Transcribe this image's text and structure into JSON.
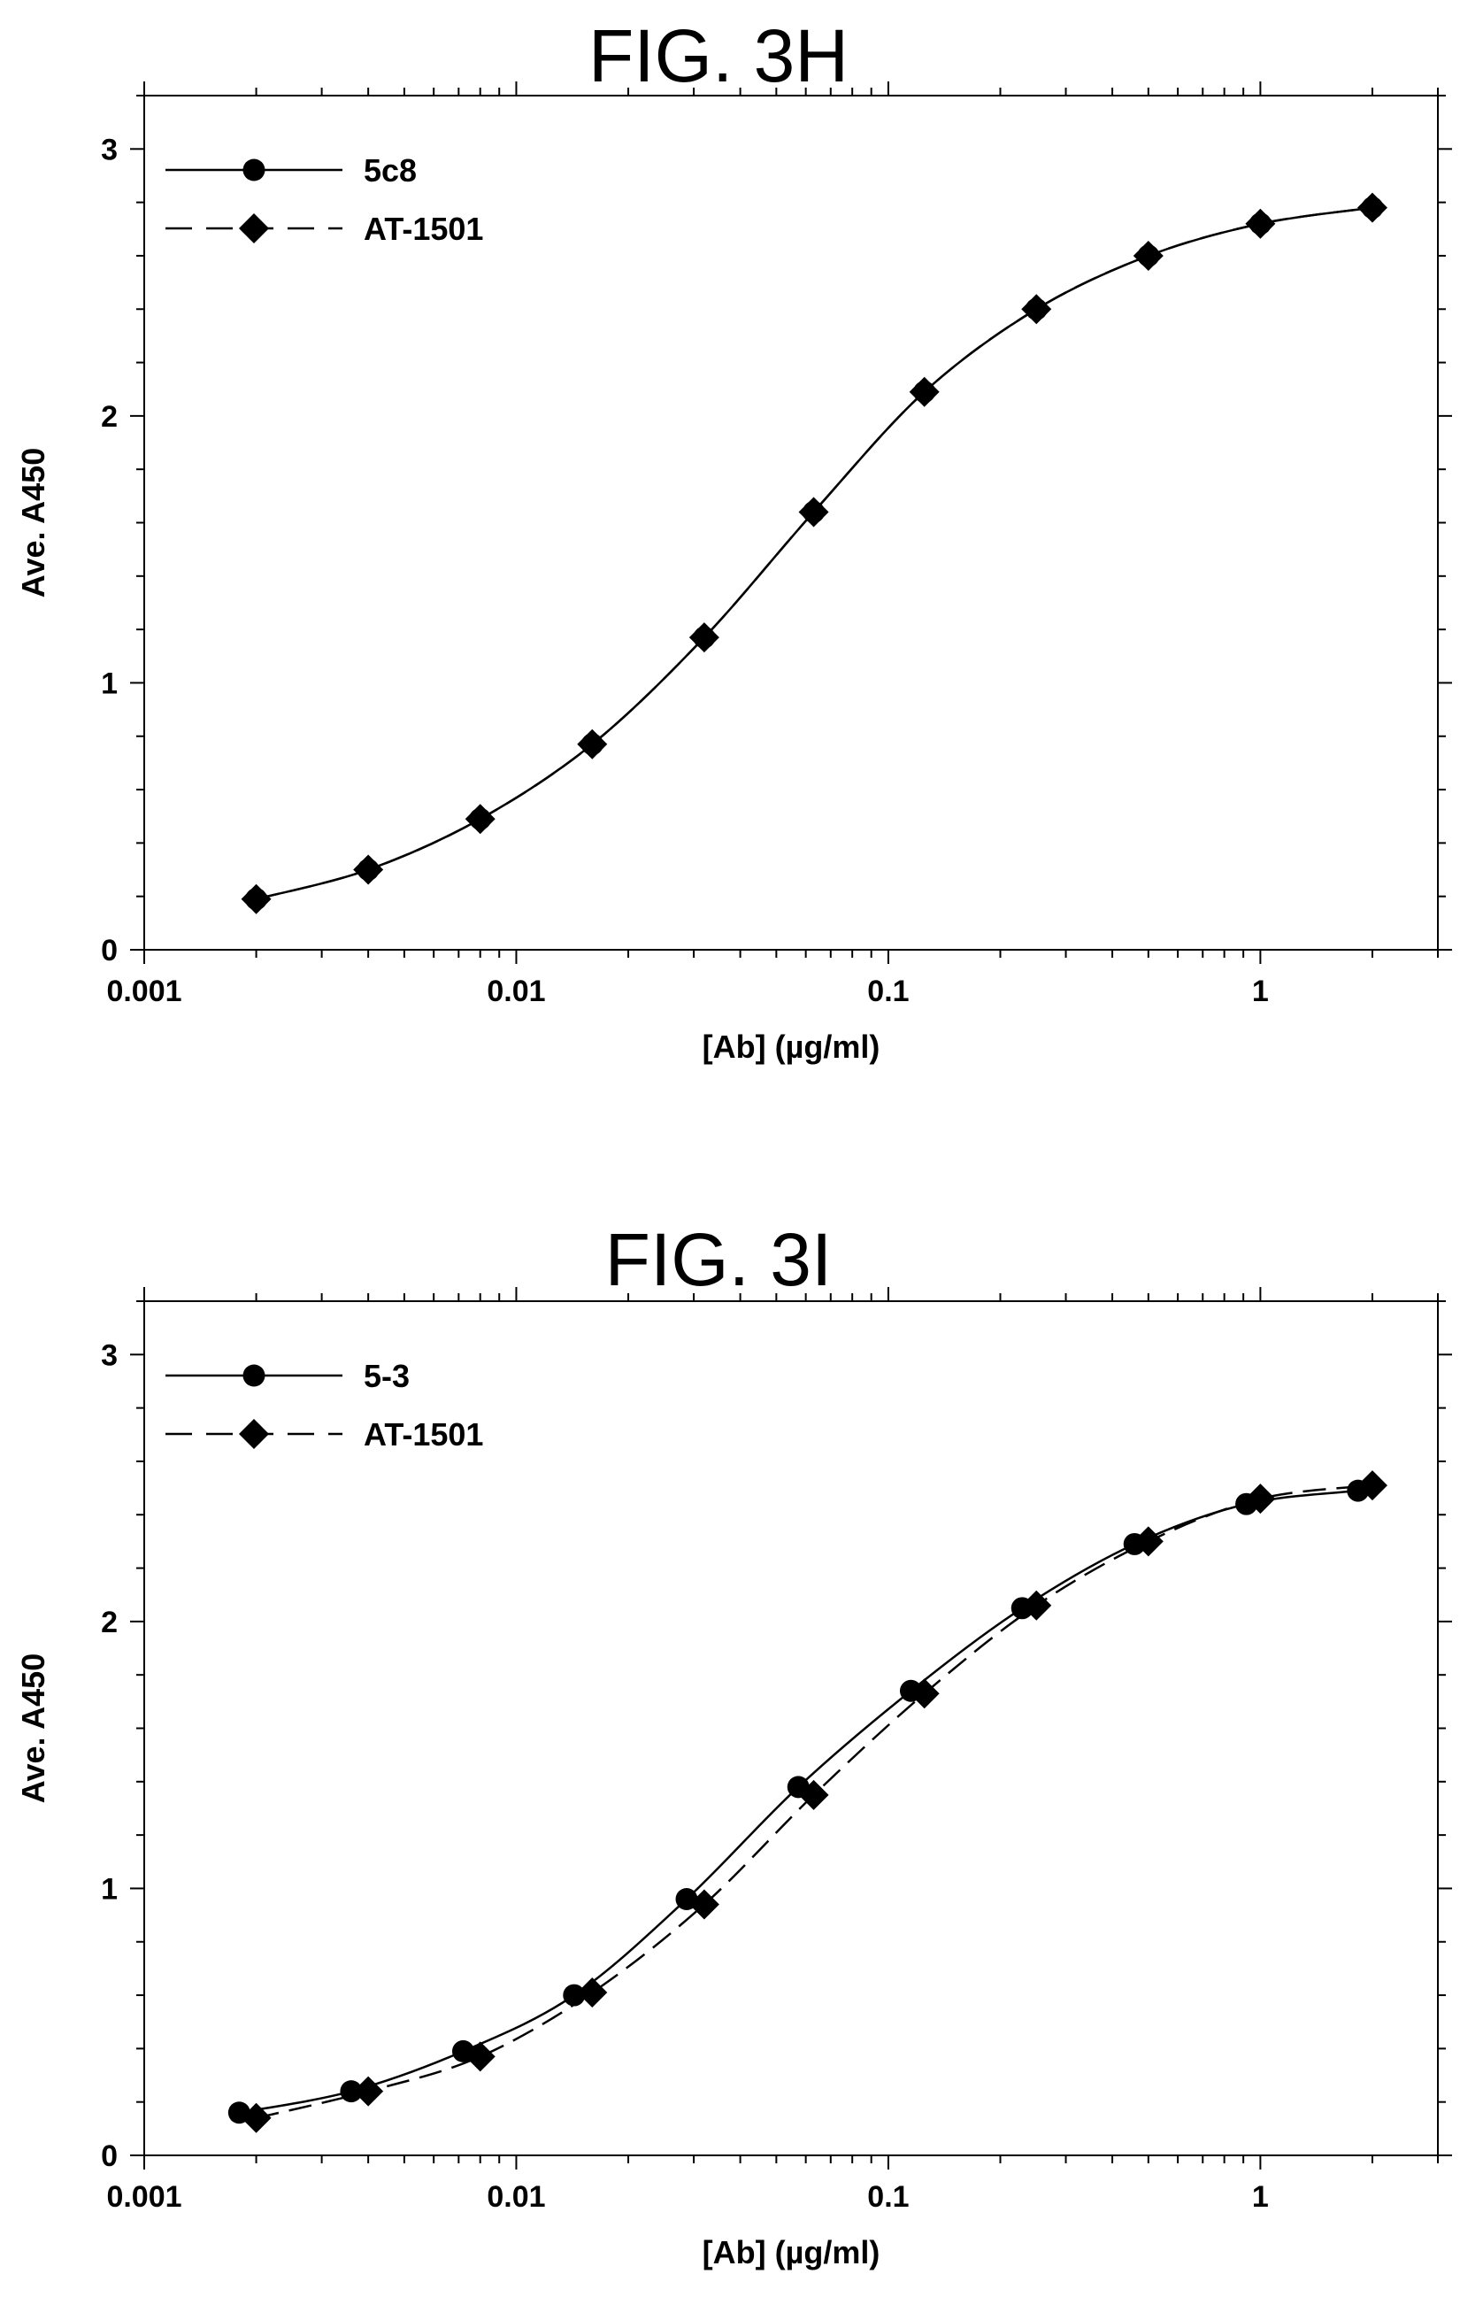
{
  "chart_data": [
    {
      "type": "line",
      "title": "FIG. 3H",
      "xlabel": "[Ab]  (µg/ml)",
      "ylabel": "Ave. A450",
      "xscale": "log",
      "xlim": [
        0.001,
        3
      ],
      "ylim": [
        0,
        3.2
      ],
      "x_ticks": [
        "0.001",
        "0.01",
        "0.1",
        "1"
      ],
      "y_ticks": [
        "0",
        "1",
        "2",
        "3"
      ],
      "legend_position": "top-left",
      "grid": false,
      "series": [
        {
          "name": "5c8",
          "marker": "circle",
          "line_style": "solid",
          "x": [
            0.002,
            0.004,
            0.008,
            0.016,
            0.032,
            0.063,
            0.125,
            0.25,
            0.5,
            1.0,
            2.0
          ],
          "y": [
            0.19,
            0.3,
            0.49,
            0.77,
            1.17,
            1.64,
            2.09,
            2.4,
            2.6,
            2.72,
            2.78
          ]
        },
        {
          "name": "AT-1501",
          "marker": "diamond",
          "line_style": "dashed",
          "x": [
            0.002,
            0.004,
            0.008,
            0.016,
            0.032,
            0.063,
            0.125,
            0.25,
            0.5,
            1.0,
            2.0
          ],
          "y": [
            0.19,
            0.3,
            0.49,
            0.77,
            1.17,
            1.64,
            2.09,
            2.4,
            2.6,
            2.72,
            2.78
          ]
        }
      ]
    },
    {
      "type": "line",
      "title": "FIG. 3I",
      "xlabel": "[Ab]  (µg/ml)",
      "ylabel": "Ave. A450",
      "xscale": "log",
      "xlim": [
        0.001,
        3
      ],
      "ylim": [
        0,
        3.2
      ],
      "x_ticks": [
        "0.001",
        "0.01",
        "0.1",
        "1"
      ],
      "y_ticks": [
        "0",
        "1",
        "2",
        "3"
      ],
      "legend_position": "top-left",
      "grid": false,
      "series": [
        {
          "name": "5-3",
          "marker": "circle",
          "line_style": "solid",
          "x": [
            0.0018,
            0.0036,
            0.0072,
            0.0143,
            0.0287,
            0.0573,
            0.115,
            0.229,
            0.459,
            0.917,
            1.83
          ],
          "y": [
            0.16,
            0.24,
            0.39,
            0.6,
            0.96,
            1.38,
            1.74,
            2.05,
            2.29,
            2.44,
            2.49
          ]
        },
        {
          "name": "AT-1501",
          "marker": "diamond",
          "line_style": "dashed",
          "x": [
            0.002,
            0.004,
            0.008,
            0.016,
            0.032,
            0.063,
            0.125,
            0.25,
            0.5,
            1.0,
            2.0
          ],
          "y": [
            0.14,
            0.24,
            0.37,
            0.61,
            0.94,
            1.35,
            1.73,
            2.06,
            2.3,
            2.46,
            2.51
          ]
        }
      ]
    }
  ]
}
